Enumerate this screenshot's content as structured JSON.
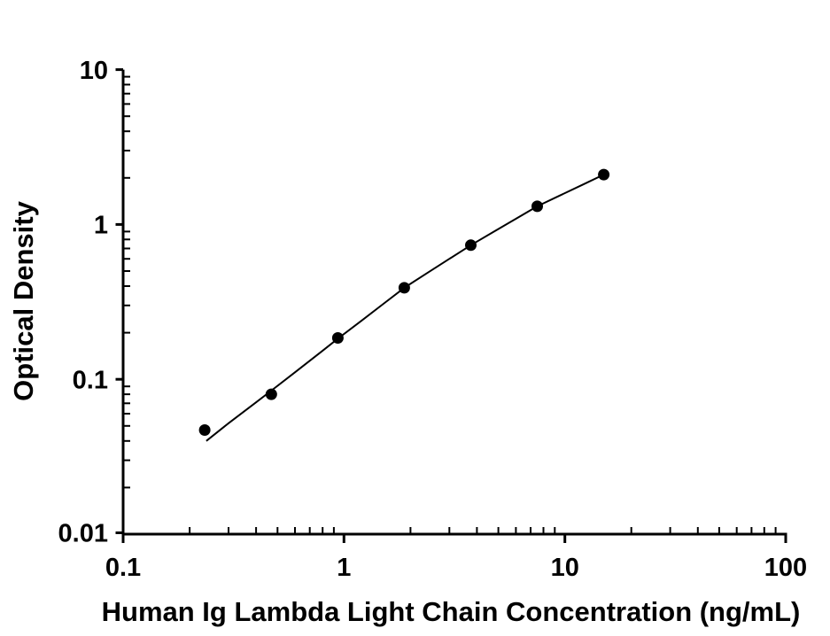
{
  "figure": {
    "background_color": "#ffffff",
    "ink_color": "#000000"
  },
  "chart_data": {
    "type": "scatter",
    "title": "",
    "xlabel": "Human Ig Lambda Light Chain Concentration (ng/mL)",
    "ylabel": "Optical Density",
    "x_scale": "log",
    "y_scale": "log",
    "xlim": [
      0.1,
      100
    ],
    "ylim": [
      0.01,
      10
    ],
    "grid": false,
    "legend": false,
    "x_ticks": [
      {
        "value": 0.1,
        "label": "0.1"
      },
      {
        "value": 1,
        "label": "1"
      },
      {
        "value": 10,
        "label": "10"
      },
      {
        "value": 100,
        "label": "100"
      }
    ],
    "y_ticks": [
      {
        "value": 10,
        "label": "10"
      },
      {
        "value": 1,
        "label": "1"
      },
      {
        "value": 0.1,
        "label": "0.1"
      },
      {
        "value": 0.01,
        "label": "0.01"
      }
    ],
    "series": [
      {
        "name": "standard curve data points",
        "marker": "filled-circle",
        "marker_color": "#000000",
        "points": [
          {
            "x": 0.234,
            "y": 0.047
          },
          {
            "x": 0.469,
            "y": 0.08
          },
          {
            "x": 0.938,
            "y": 0.185
          },
          {
            "x": 1.875,
            "y": 0.39
          },
          {
            "x": 3.75,
            "y": 0.735
          },
          {
            "x": 7.5,
            "y": 1.31
          },
          {
            "x": 15,
            "y": 2.1
          }
        ]
      }
    ],
    "fit_curve": {
      "name": "four-parameter-logistic fit line",
      "color": "#000000",
      "points": [
        [
          0.238,
          0.04
        ],
        [
          0.3,
          0.052
        ],
        [
          0.4,
          0.071
        ],
        [
          0.469,
          0.0845
        ],
        [
          0.6,
          0.111
        ],
        [
          0.8,
          0.153
        ],
        [
          0.938,
          0.183
        ],
        [
          1.2,
          0.239
        ],
        [
          1.5,
          0.305
        ],
        [
          1.875,
          0.39
        ],
        [
          2.4,
          0.489
        ],
        [
          3.0,
          0.6
        ],
        [
          3.75,
          0.735
        ],
        [
          4.8,
          0.903
        ],
        [
          6.0,
          1.088
        ],
        [
          7.5,
          1.31
        ],
        [
          9.5,
          1.538
        ],
        [
          12.0,
          1.803
        ],
        [
          15.0,
          2.1
        ]
      ]
    }
  }
}
